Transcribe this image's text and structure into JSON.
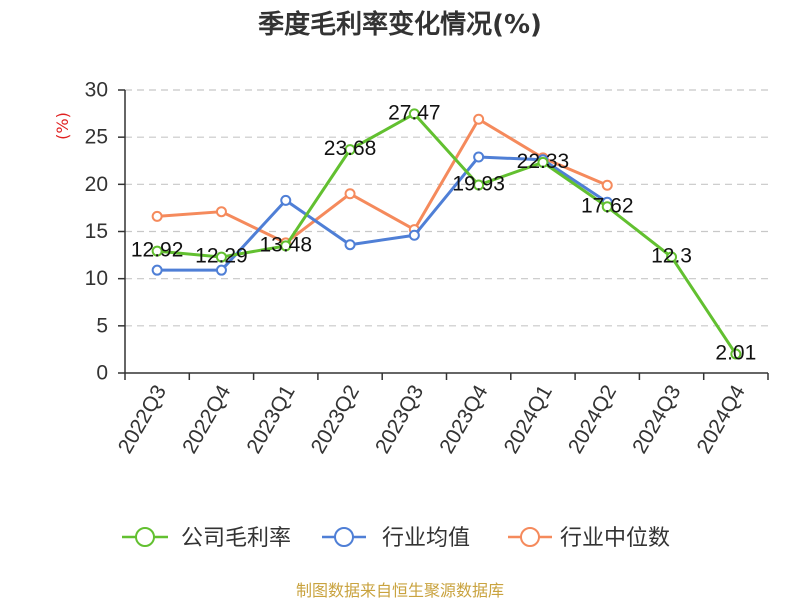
{
  "chart_data": {
    "type": "line",
    "title": "季度毛利率变化情况(%)",
    "ylabel": "(%)",
    "ylim": [
      0,
      30
    ],
    "yticks": [
      0,
      5,
      10,
      15,
      20,
      25,
      30
    ],
    "grid": true,
    "legend_position": "bottom",
    "categories": [
      "2022Q3",
      "2022Q4",
      "2023Q1",
      "2023Q2",
      "2023Q3",
      "2023Q4",
      "2024Q1",
      "2024Q2",
      "2024Q3",
      "2024Q4"
    ],
    "series": [
      {
        "name": "公司毛利率",
        "color": "#62c030",
        "show_labels": true,
        "values": [
          12.92,
          12.29,
          13.48,
          23.68,
          27.47,
          19.93,
          22.33,
          17.62,
          12.3,
          2.01
        ]
      },
      {
        "name": "行业均值",
        "color": "#4f7fd6",
        "show_labels": false,
        "values": [
          10.9,
          10.9,
          18.3,
          13.6,
          14.6,
          22.9,
          22.6,
          18.1,
          null,
          null
        ]
      },
      {
        "name": "行业中位数",
        "color": "#f58a5c",
        "show_labels": false,
        "values": [
          16.6,
          17.1,
          13.8,
          19.0,
          15.2,
          26.9,
          22.8,
          19.9,
          null,
          null
        ]
      }
    ]
  },
  "footer": {
    "source": "制图数据来自恒生聚源数据库"
  }
}
